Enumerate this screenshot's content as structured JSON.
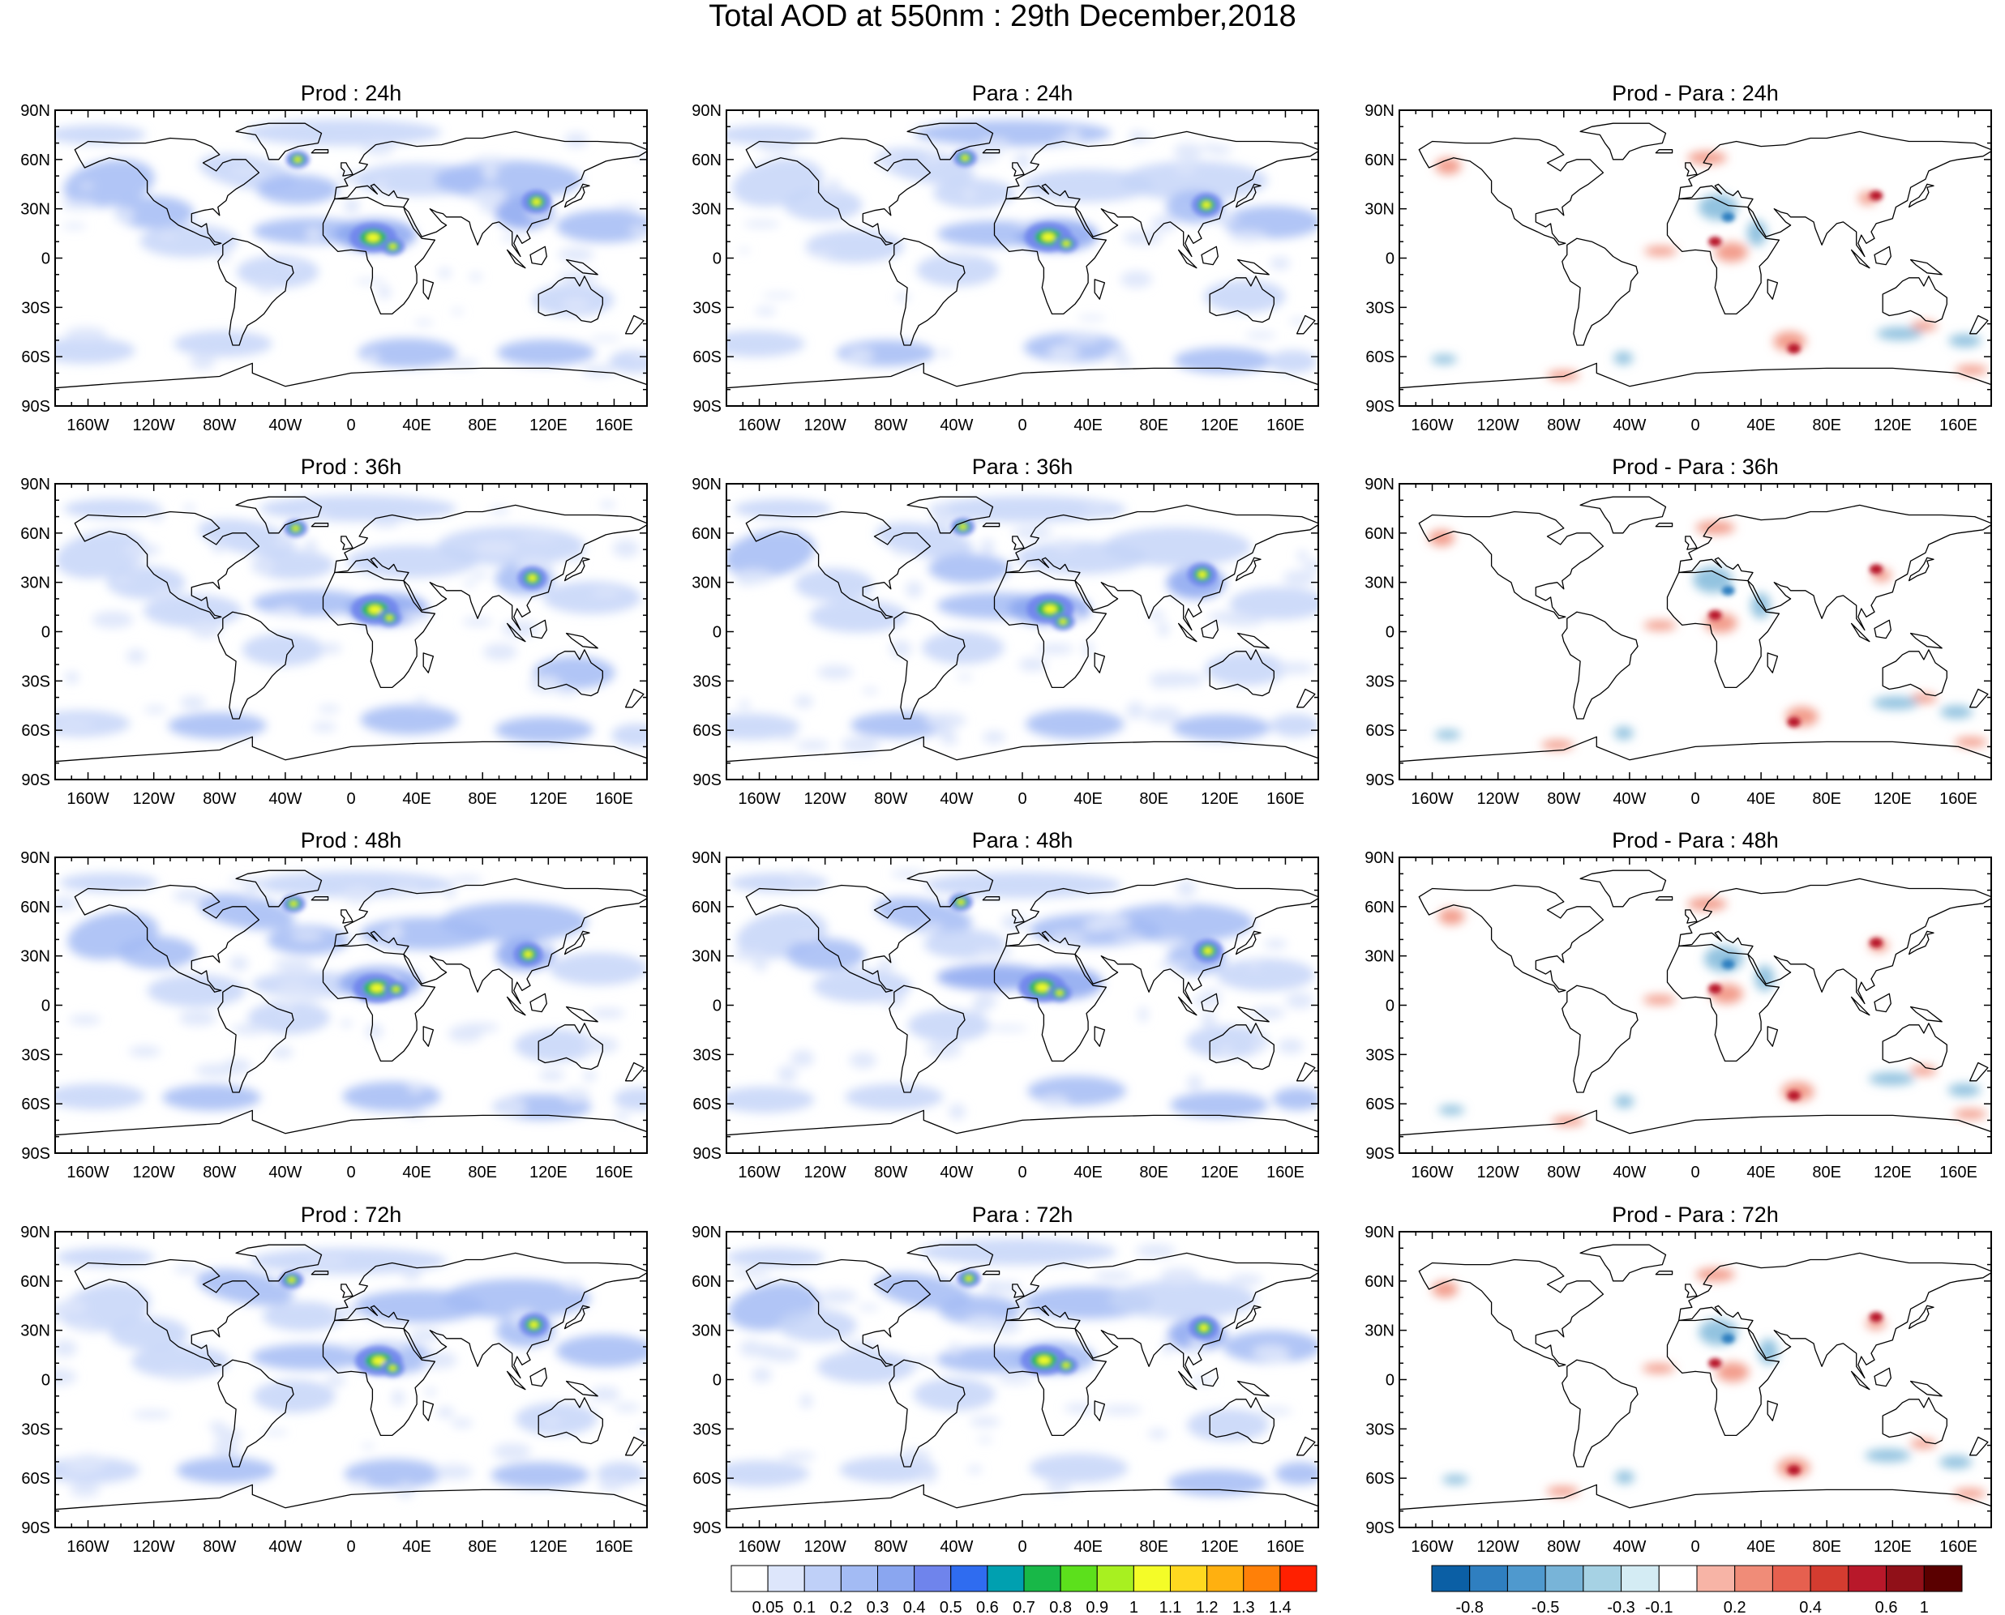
{
  "title": "Total AOD at 550nm : 29th December,2018",
  "lat_labels": [
    "90N",
    "60N",
    "30N",
    "0",
    "30S",
    "60S",
    "90S"
  ],
  "lon_labels": [
    "160W",
    "120W",
    "80W",
    "40W",
    "0",
    "40E",
    "80E",
    "120E",
    "160E"
  ],
  "panels": [
    {
      "title": "Prod : 24h",
      "kind": "aod",
      "row": 0,
      "col": 0
    },
    {
      "title": "Para : 24h",
      "kind": "aod",
      "row": 0,
      "col": 1
    },
    {
      "title": "Prod - Para : 24h",
      "kind": "diff",
      "row": 0,
      "col": 2
    },
    {
      "title": "Prod : 36h",
      "kind": "aod",
      "row": 1,
      "col": 0
    },
    {
      "title": "Para : 36h",
      "kind": "aod",
      "row": 1,
      "col": 1
    },
    {
      "title": "Prod - Para : 36h",
      "kind": "diff",
      "row": 1,
      "col": 2
    },
    {
      "title": "Prod : 48h",
      "kind": "aod",
      "row": 2,
      "col": 0
    },
    {
      "title": "Para : 48h",
      "kind": "aod",
      "row": 2,
      "col": 1
    },
    {
      "title": "Prod - Para : 48h",
      "kind": "diff",
      "row": 2,
      "col": 2
    },
    {
      "title": "Prod : 72h",
      "kind": "aod",
      "row": 3,
      "col": 0
    },
    {
      "title": "Para : 72h",
      "kind": "aod",
      "row": 3,
      "col": 1
    },
    {
      "title": "Prod - Para : 72h",
      "kind": "diff",
      "row": 3,
      "col": 2
    }
  ],
  "aod_colorbar": {
    "labels": [
      "0.05",
      "0.1",
      "0.2",
      "0.3",
      "0.4",
      "0.5",
      "0.6",
      "0.7",
      "0.8",
      "0.9",
      "1",
      "1.1",
      "1.2",
      "1.3",
      "1.4"
    ],
    "colors": [
      "#ffffff",
      "#dde6fb",
      "#bfd0f8",
      "#a3bbf4",
      "#8aa6f0",
      "#6f84ec",
      "#2f6cf0",
      "#00a0b0",
      "#18b848",
      "#5ce01c",
      "#a8f020",
      "#f4fc28",
      "#ffd820",
      "#ffb010",
      "#ff8008",
      "#ff2000"
    ]
  },
  "diff_colorbar": {
    "labels": [
      "-0.8",
      "-0.5",
      "-0.3",
      "-0.1",
      "0.2",
      "0.4",
      "0.6",
      "1"
    ],
    "colors": [
      "#0b5fa5",
      "#2f7fc0",
      "#4f99ce",
      "#78b4d8",
      "#a6d2e4",
      "#d4ecf4",
      "#ffffff",
      "#f7b4a6",
      "#f08c78",
      "#e6604f",
      "#d43c30",
      "#b8182a",
      "#901018",
      "#5a0000"
    ]
  }
}
